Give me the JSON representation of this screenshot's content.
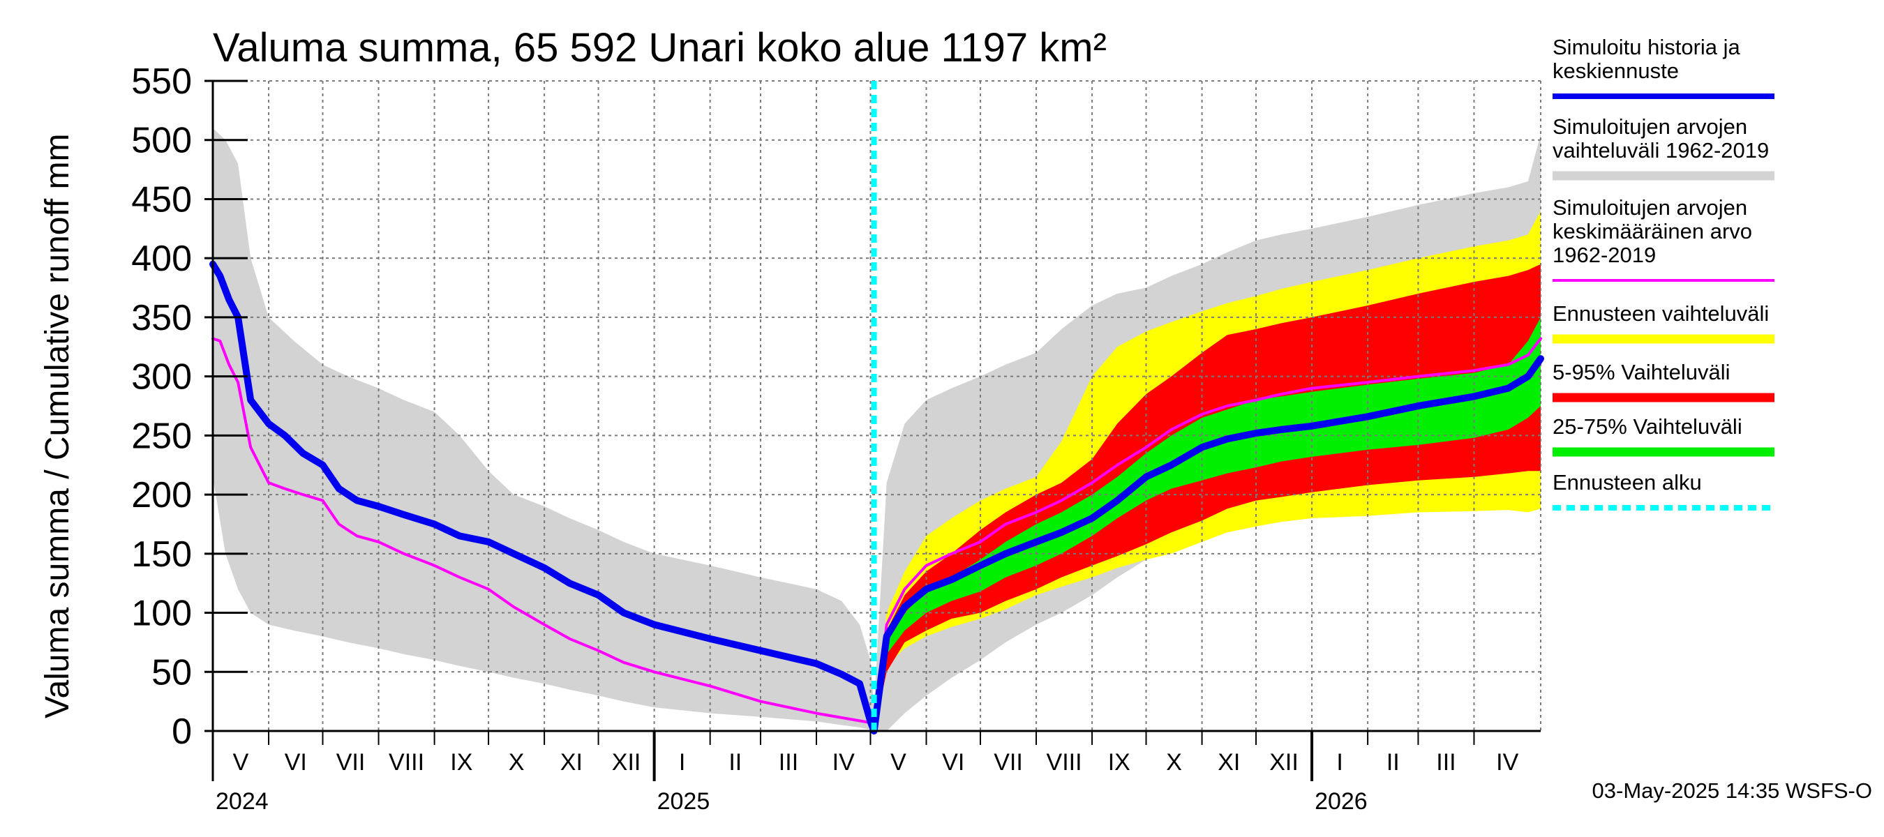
{
  "chart_data": {
    "type": "area",
    "title": "Valuma summa, 65 592 Unari koko alue 1197 km²",
    "ylabel": "Valuma summa / Cumulative runoff    mm",
    "ylim": [
      0,
      550
    ],
    "y_ticks": [
      "0",
      "50",
      "100",
      "150",
      "200",
      "250",
      "300",
      "350",
      "400",
      "450",
      "500",
      "550"
    ],
    "x_range": [
      "2024-05-01",
      "2026-05-08"
    ],
    "forecast_start": "2025-05-03",
    "months": [
      {
        "label": "V",
        "date": "2024-05-01"
      },
      {
        "label": "VI",
        "date": "2024-06-01"
      },
      {
        "label": "VII",
        "date": "2024-07-01"
      },
      {
        "label": "VIII",
        "date": "2024-08-01"
      },
      {
        "label": "IX",
        "date": "2024-09-01"
      },
      {
        "label": "X",
        "date": "2024-10-01"
      },
      {
        "label": "XI",
        "date": "2024-11-01"
      },
      {
        "label": "XII",
        "date": "2024-12-01"
      },
      {
        "label": "I",
        "date": "2025-01-01"
      },
      {
        "label": "II",
        "date": "2025-02-01"
      },
      {
        "label": "III",
        "date": "2025-03-01"
      },
      {
        "label": "IV",
        "date": "2025-04-01"
      },
      {
        "label": "V",
        "date": "2025-05-01"
      },
      {
        "label": "VI",
        "date": "2025-06-01"
      },
      {
        "label": "VII",
        "date": "2025-07-01"
      },
      {
        "label": "VIII",
        "date": "2025-08-01"
      },
      {
        "label": "IX",
        "date": "2025-09-01"
      },
      {
        "label": "X",
        "date": "2025-10-01"
      },
      {
        "label": "XI",
        "date": "2025-11-01"
      },
      {
        "label": "XII",
        "date": "2025-12-01"
      },
      {
        "label": "I",
        "date": "2026-01-01"
      },
      {
        "label": "II",
        "date": "2026-02-01"
      },
      {
        "label": "III",
        "date": "2026-03-01"
      },
      {
        "label": "IV",
        "date": "2026-04-01"
      }
    ],
    "years": [
      {
        "label": "2024",
        "date": "2024-05-01"
      },
      {
        "label": "2025",
        "date": "2025-01-01"
      },
      {
        "label": "2026",
        "date": "2026-01-01"
      }
    ],
    "colors": {
      "history_range": "#d3d3d3",
      "forecast_range": "#ffff00",
      "p5_95": "#ff0000",
      "p25_75": "#00ee00",
      "mean": "#ff00ff",
      "median": "#0000ee",
      "forecast_start": "#00ffff",
      "grid": "#7a7a7a"
    },
    "history_range": {
      "x": [
        "2024-05-01",
        "2024-05-08",
        "2024-05-15",
        "2024-05-22",
        "2024-06-01",
        "2024-06-15",
        "2024-07-01",
        "2024-07-15",
        "2024-08-01",
        "2024-08-15",
        "2024-09-01",
        "2024-09-15",
        "2024-10-01",
        "2024-10-15",
        "2024-11-01",
        "2024-11-15",
        "2024-12-01",
        "2024-12-15",
        "2025-01-01",
        "2025-02-01",
        "2025-03-01",
        "2025-04-01",
        "2025-04-15",
        "2025-04-25",
        "2025-05-01",
        "2025-05-03",
        "2025-05-10",
        "2025-05-20",
        "2025-06-01",
        "2025-06-15",
        "2025-07-01",
        "2025-07-15",
        "2025-08-01",
        "2025-08-15",
        "2025-09-01",
        "2025-09-15",
        "2025-10-01",
        "2025-10-15",
        "2025-11-01",
        "2025-11-15",
        "2025-12-01",
        "2025-12-15",
        "2026-01-01",
        "2026-02-01",
        "2026-03-01",
        "2026-04-01",
        "2026-04-20",
        "2026-05-01",
        "2026-05-08"
      ],
      "upper": [
        510,
        500,
        480,
        400,
        350,
        330,
        310,
        300,
        290,
        280,
        270,
        250,
        220,
        200,
        190,
        180,
        170,
        160,
        150,
        140,
        130,
        120,
        110,
        90,
        60,
        20,
        210,
        260,
        280,
        290,
        300,
        310,
        320,
        340,
        360,
        370,
        375,
        385,
        395,
        405,
        415,
        420,
        425,
        435,
        445,
        455,
        460,
        465,
        505
      ],
      "lower": [
        215,
        150,
        120,
        100,
        90,
        85,
        80,
        75,
        70,
        65,
        60,
        55,
        50,
        45,
        40,
        35,
        30,
        25,
        20,
        15,
        12,
        8,
        5,
        3,
        1,
        0,
        0,
        15,
        30,
        45,
        60,
        75,
        90,
        100,
        115,
        130,
        145,
        160,
        165,
        170,
        175,
        178,
        182,
        188,
        195,
        200,
        205,
        210,
        212
      ]
    },
    "forecast_range": {
      "x": [
        "2025-05-03",
        "2025-05-10",
        "2025-05-20",
        "2025-06-01",
        "2025-06-15",
        "2025-07-01",
        "2025-07-15",
        "2025-08-01",
        "2025-08-15",
        "2025-09-01",
        "2025-09-15",
        "2025-10-01",
        "2025-10-15",
        "2025-11-01",
        "2025-11-15",
        "2025-12-01",
        "2025-12-15",
        "2026-01-01",
        "2026-02-01",
        "2026-03-01",
        "2026-04-01",
        "2026-04-20",
        "2026-05-01",
        "2026-05-08"
      ],
      "upper": [
        0,
        100,
        135,
        165,
        180,
        195,
        205,
        215,
        245,
        300,
        325,
        338,
        346,
        355,
        362,
        368,
        374,
        380,
        390,
        400,
        410,
        415,
        420,
        440
      ],
      "lower": [
        0,
        55,
        70,
        80,
        88,
        95,
        103,
        115,
        122,
        130,
        138,
        145,
        150,
        160,
        168,
        173,
        177,
        180,
        182,
        185,
        186,
        187,
        185,
        188
      ]
    },
    "p5_95": {
      "x": [
        "2025-05-03",
        "2025-05-10",
        "2025-05-20",
        "2025-06-01",
        "2025-06-15",
        "2025-07-01",
        "2025-07-15",
        "2025-08-01",
        "2025-08-15",
        "2025-09-01",
        "2025-09-15",
        "2025-10-01",
        "2025-10-15",
        "2025-11-01",
        "2025-11-15",
        "2025-12-01",
        "2025-12-15",
        "2026-01-01",
        "2026-02-01",
        "2026-03-01",
        "2026-04-01",
        "2026-04-20",
        "2026-05-01",
        "2026-05-08"
      ],
      "upper": [
        0,
        85,
        115,
        135,
        150,
        170,
        185,
        200,
        210,
        230,
        260,
        285,
        300,
        320,
        335,
        340,
        345,
        350,
        360,
        370,
        380,
        385,
        390,
        395
      ],
      "lower": [
        0,
        50,
        75,
        85,
        95,
        100,
        110,
        120,
        130,
        140,
        148,
        158,
        168,
        178,
        188,
        195,
        198,
        202,
        208,
        212,
        215,
        218,
        220,
        220
      ]
    },
    "p25_75": {
      "x": [
        "2025-05-03",
        "2025-05-10",
        "2025-05-20",
        "2025-06-01",
        "2025-06-15",
        "2025-07-01",
        "2025-07-15",
        "2025-08-01",
        "2025-08-15",
        "2025-09-01",
        "2025-09-15",
        "2025-10-01",
        "2025-10-15",
        "2025-11-01",
        "2025-11-15",
        "2025-12-01",
        "2025-12-15",
        "2026-01-01",
        "2026-02-01",
        "2026-03-01",
        "2026-04-01",
        "2026-04-20",
        "2026-05-01",
        "2026-05-08"
      ],
      "upper": [
        0,
        75,
        100,
        118,
        130,
        145,
        160,
        175,
        185,
        200,
        215,
        235,
        250,
        265,
        272,
        280,
        283,
        287,
        293,
        298,
        303,
        310,
        330,
        350
      ],
      "lower": [
        0,
        65,
        85,
        100,
        110,
        118,
        130,
        140,
        150,
        165,
        180,
        195,
        205,
        212,
        218,
        223,
        228,
        232,
        238,
        242,
        248,
        255,
        265,
        275
      ]
    },
    "series": [
      {
        "name": "Simuloitujen arvojen keskimääräinen arvo",
        "x": [
          "2024-05-01",
          "2024-05-05",
          "2024-05-10",
          "2024-05-15",
          "2024-05-22",
          "2024-06-01",
          "2024-06-10",
          "2024-06-20",
          "2024-07-01",
          "2024-07-10",
          "2024-07-20",
          "2024-08-01",
          "2024-08-15",
          "2024-09-01",
          "2024-09-15",
          "2024-10-01",
          "2024-10-15",
          "2024-11-01",
          "2024-11-15",
          "2024-12-01",
          "2024-12-15",
          "2025-01-01",
          "2025-02-01",
          "2025-03-01",
          "2025-04-01",
          "2025-04-20",
          "2025-05-01",
          "2025-05-03",
          "2025-05-10",
          "2025-05-20",
          "2025-06-01",
          "2025-06-15",
          "2025-07-01",
          "2025-07-15",
          "2025-08-01",
          "2025-08-15",
          "2025-09-01",
          "2025-09-15",
          "2025-10-01",
          "2025-10-15",
          "2025-11-01",
          "2025-11-15",
          "2025-12-01",
          "2025-12-15",
          "2026-01-01",
          "2026-02-01",
          "2026-03-01",
          "2026-04-01",
          "2026-04-20",
          "2026-05-01",
          "2026-05-08"
        ],
        "y": [
          332,
          330,
          310,
          295,
          240,
          210,
          205,
          200,
          195,
          175,
          165,
          160,
          150,
          140,
          130,
          120,
          105,
          90,
          78,
          68,
          58,
          50,
          38,
          25,
          15,
          10,
          7,
          0,
          90,
          120,
          140,
          150,
          160,
          175,
          185,
          195,
          210,
          225,
          240,
          255,
          268,
          275,
          280,
          285,
          290,
          295,
          300,
          305,
          310,
          318,
          332
        ]
      },
      {
        "name": "Simuloitu historia ja keskiennuste",
        "x": [
          "2024-05-01",
          "2024-05-05",
          "2024-05-10",
          "2024-05-15",
          "2024-05-22",
          "2024-06-01",
          "2024-06-10",
          "2024-06-20",
          "2024-07-01",
          "2024-07-10",
          "2024-07-20",
          "2024-08-01",
          "2024-08-15",
          "2024-09-01",
          "2024-09-15",
          "2024-10-01",
          "2024-10-15",
          "2024-11-01",
          "2024-11-15",
          "2024-12-01",
          "2024-12-15",
          "2025-01-01",
          "2025-02-01",
          "2025-03-01",
          "2025-04-01",
          "2025-04-15",
          "2025-04-25",
          "2025-05-01",
          "2025-05-03",
          "2025-05-10",
          "2025-05-20",
          "2025-06-01",
          "2025-06-15",
          "2025-07-01",
          "2025-07-15",
          "2025-08-01",
          "2025-08-15",
          "2025-09-01",
          "2025-09-15",
          "2025-10-01",
          "2025-10-15",
          "2025-11-01",
          "2025-11-15",
          "2025-12-01",
          "2025-12-15",
          "2026-01-01",
          "2026-02-01",
          "2026-03-01",
          "2026-04-01",
          "2026-04-20",
          "2026-05-01",
          "2026-05-08"
        ],
        "y": [
          395,
          385,
          365,
          350,
          280,
          260,
          250,
          235,
          225,
          205,
          195,
          190,
          183,
          175,
          165,
          160,
          150,
          138,
          125,
          115,
          100,
          90,
          78,
          68,
          57,
          48,
          40,
          8,
          0,
          80,
          105,
          120,
          128,
          140,
          150,
          160,
          168,
          180,
          195,
          215,
          225,
          240,
          247,
          252,
          255,
          258,
          266,
          275,
          283,
          290,
          300,
          315
        ]
      }
    ],
    "legend": [
      {
        "label": "Simuloitu historia ja\nkeskiennuste",
        "color": "#0000ee",
        "style": "line"
      },
      {
        "label": "Simuloitujen arvojen\nvaihteluväli 1962-2019",
        "color": "#d3d3d3",
        "style": "band"
      },
      {
        "label": "Simuloitujen arvojen\nkeskimääräinen arvo\n   1962-2019",
        "color": "#ff00ff",
        "style": "thin"
      },
      {
        "label": "Ennusteen vaihteluväli",
        "color": "#ffff00",
        "style": "band"
      },
      {
        "label": "5-95% Vaihteluväli",
        "color": "#ff0000",
        "style": "band"
      },
      {
        "label": "25-75% Vaihteluväli",
        "color": "#00ee00",
        "style": "band"
      },
      {
        "label": "Ennusteen alku",
        "color": "#00ffff",
        "style": "dashed"
      }
    ],
    "legend_position": "right",
    "grid": true,
    "footer": "03-May-2025 14:35 WSFS-O"
  }
}
